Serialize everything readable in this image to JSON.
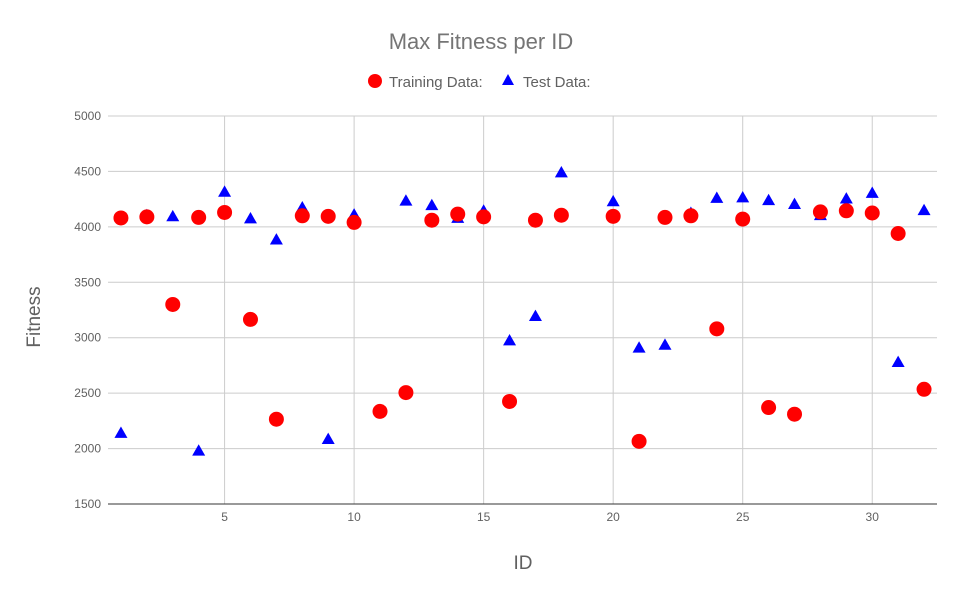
{
  "chart_data": {
    "type": "scatter",
    "title": "Max Fitness per ID",
    "xlabel": "ID",
    "ylabel": "Fitness",
    "xlim": [
      0.5,
      32.5
    ],
    "ylim": [
      1500,
      5000
    ],
    "xticks": [
      5,
      10,
      15,
      20,
      25,
      30
    ],
    "yticks": [
      1500,
      2000,
      2500,
      3000,
      3500,
      4000,
      4500,
      5000
    ],
    "grid": true,
    "legend_position": "top",
    "series": [
      {
        "name": "Training Data:",
        "marker": "circle",
        "color": "#ff0000",
        "x": [
          1,
          2,
          3,
          4,
          5,
          6,
          7,
          8,
          9,
          10,
          11,
          12,
          13,
          14,
          15,
          16,
          17,
          18,
          20,
          21,
          22,
          23,
          24,
          25,
          26,
          27,
          28,
          29,
          30,
          31,
          32
        ],
        "y": [
          4080,
          4090,
          3300,
          4085,
          4130,
          3165,
          2265,
          4100,
          4095,
          4040,
          2335,
          2505,
          4060,
          4115,
          4090,
          2425,
          4060,
          4105,
          4095,
          2065,
          4085,
          4100,
          3080,
          4070,
          2370,
          2310,
          4135,
          4145,
          4125,
          3940,
          2535
        ]
      },
      {
        "name": "Test Data:",
        "marker": "triangle",
        "color": "#0000ff",
        "x": [
          1,
          2,
          3,
          4,
          5,
          6,
          7,
          8,
          9,
          10,
          11,
          12,
          13,
          14,
          15,
          16,
          17,
          18,
          20,
          21,
          22,
          23,
          24,
          25,
          26,
          27,
          28,
          29,
          30,
          31,
          32
        ],
        "y": [
          2140,
          4105,
          4095,
          1980,
          4315,
          4075,
          3885,
          4175,
          2085,
          4110,
          2345,
          4235,
          4195,
          4080,
          4145,
          2975,
          3195,
          4490,
          4230,
          2910,
          2935,
          4125,
          4260,
          4265,
          4240,
          4205,
          4105,
          4255,
          4305,
          2780,
          4150
        ]
      }
    ]
  }
}
